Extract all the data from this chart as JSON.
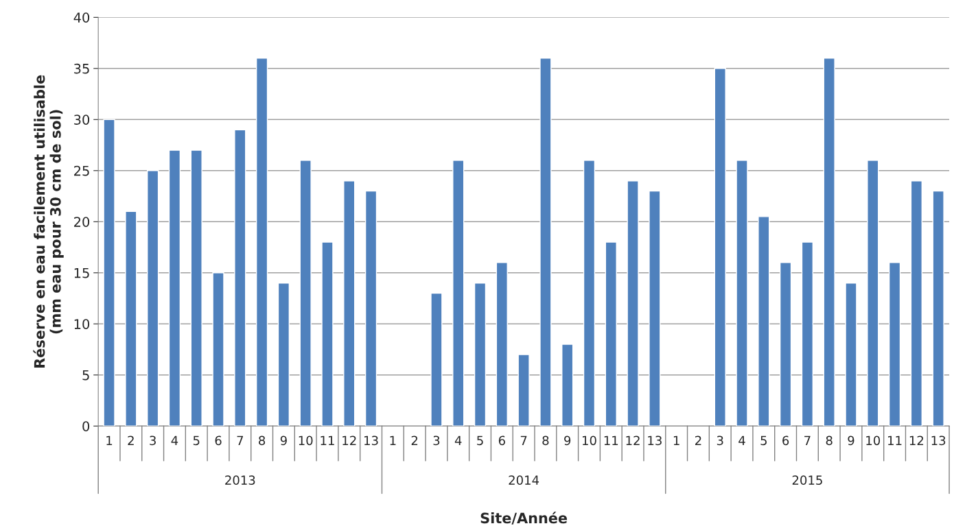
{
  "chart_data": {
    "type": "bar",
    "xlabel": "Site/Année",
    "ylabel": "Réserve en eau facilement utilisable\n(mm eau pour 30 cm de sol)",
    "categories": [
      "1",
      "2",
      "3",
      "4",
      "5",
      "6",
      "7",
      "8",
      "9",
      "10",
      "11",
      "12",
      "13",
      "1",
      "2",
      "3",
      "4",
      "5",
      "6",
      "7",
      "8",
      "9",
      "10",
      "11",
      "12",
      "13",
      "1",
      "2",
      "3",
      "4",
      "5",
      "6",
      "7",
      "8",
      "9",
      "10",
      "11",
      "12",
      "13"
    ],
    "values": [
      30,
      21,
      25,
      27,
      27,
      15,
      29,
      36,
      14,
      26,
      18,
      24,
      23,
      null,
      null,
      13,
      26,
      14,
      16,
      7,
      36,
      8,
      26,
      18,
      24,
      23,
      null,
      null,
      35,
      26,
      20.5,
      16,
      18,
      36,
      14,
      26,
      16,
      24,
      23
    ],
    "color": "#4f81bd",
    "ylim": [
      0,
      40
    ],
    "yticks": [
      0,
      5,
      10,
      15,
      20,
      25,
      30,
      35,
      40
    ],
    "grid": "y",
    "legend": false,
    "annotations": [
      "2013",
      "2014",
      "2015"
    ]
  }
}
